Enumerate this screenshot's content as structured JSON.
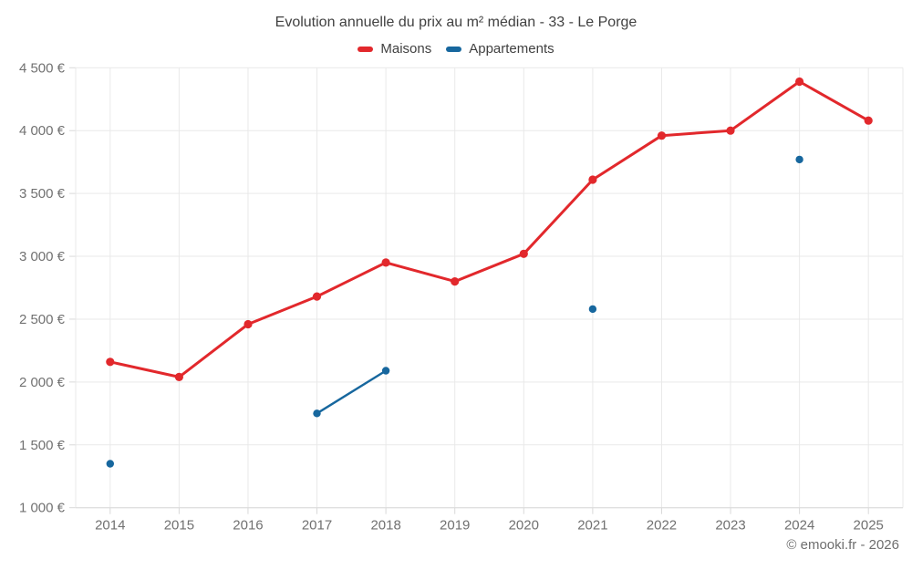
{
  "chart_data": {
    "type": "line",
    "title": "Evolution annuelle du prix au m² médian - 33 - Le Porge",
    "footer": "© emooki.fr - 2026",
    "categories": [
      "2014",
      "2015",
      "2016",
      "2017",
      "2018",
      "2019",
      "2020",
      "2021",
      "2022",
      "2023",
      "2024",
      "2025"
    ],
    "series": [
      {
        "name": "Maisons",
        "color": "#e2282c",
        "values": [
          2160,
          2040,
          2460,
          2680,
          2950,
          2800,
          3020,
          3610,
          3960,
          4000,
          4390,
          4080
        ]
      },
      {
        "name": "Appartements",
        "color": "#17679e",
        "values": [
          1350,
          null,
          null,
          1750,
          2090,
          null,
          null,
          2580,
          null,
          null,
          3770,
          null
        ]
      }
    ],
    "ylim": [
      1000,
      4500
    ],
    "ytick_step": 500,
    "ytick_labels": [
      "1 000 €",
      "1 500 €",
      "2 000 €",
      "2 500 €",
      "3 000 €",
      "3 500 €",
      "4 000 €",
      "4 500 €"
    ],
    "xlabel": "",
    "ylabel": "",
    "grid": true,
    "legend_position": "top",
    "colors": {
      "grid": "#e9e9e9",
      "axis": "#d9d9d9",
      "axis_text": "#717171",
      "title_text": "#414141",
      "footer_text": "#6e6e6e"
    }
  }
}
